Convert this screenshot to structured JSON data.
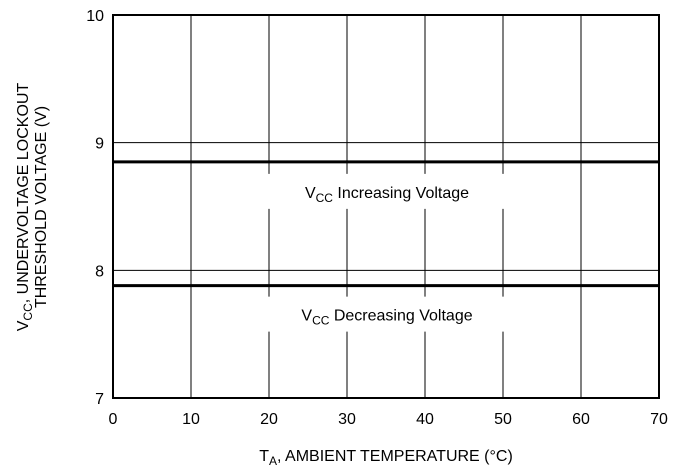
{
  "chart_data": {
    "type": "line",
    "xlabel_main": "T",
    "xlabel_sub": "A",
    "xlabel_rest": ", AMBIENT TEMPERATURE (°C)",
    "ylabel_line1_main": "V",
    "ylabel_line1_sub": "CC",
    "ylabel_line1_rest": ", UNDERVOLTAGE LOCKOUT",
    "ylabel_line2": "THRESHOLD VOLTAGE (V)",
    "xlim": [
      0,
      70
    ],
    "ylim": [
      7,
      10
    ],
    "x_ticks": [
      0,
      10,
      20,
      30,
      40,
      50,
      60,
      70
    ],
    "y_ticks": [
      7,
      8,
      9,
      10
    ],
    "grid": true,
    "series": [
      {
        "label_main": "V",
        "label_sub": "CC",
        "label_rest": " Increasing Voltage",
        "x": [
          0,
          70
        ],
        "y": [
          8.85,
          8.85
        ]
      },
      {
        "label_main": "V",
        "label_sub": "CC",
        "label_rest": " Decreasing Voltage",
        "x": [
          0,
          70
        ],
        "y": [
          7.88,
          7.88
        ]
      }
    ]
  }
}
